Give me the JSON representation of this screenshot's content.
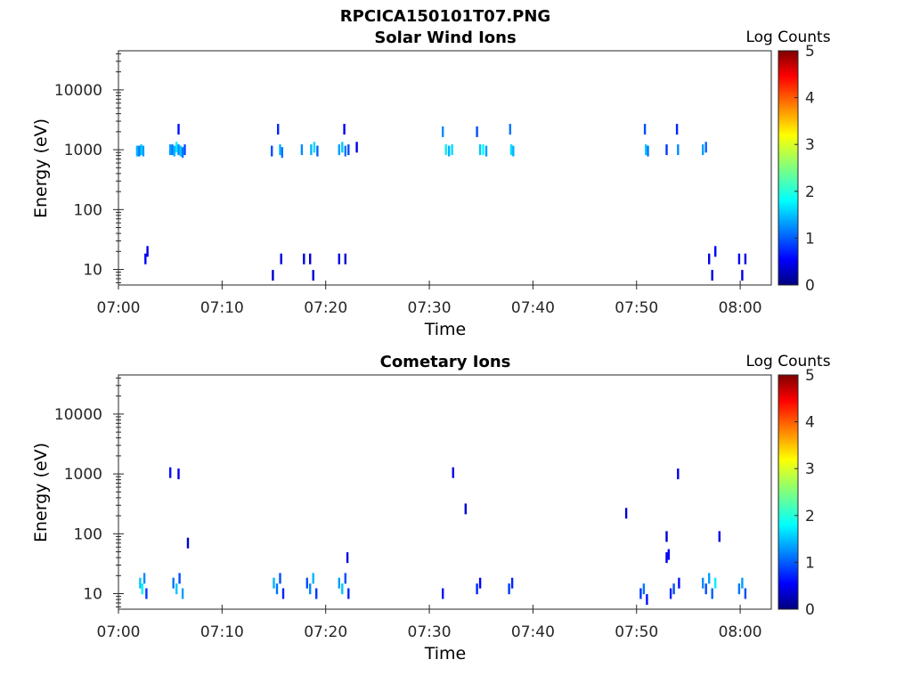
{
  "figure": {
    "title": "RPCICA150101T07.PNG"
  },
  "colors": {
    "axis": "#262626",
    "background": "#ffffff",
    "colormap": "jet"
  },
  "chart_data": [
    {
      "type": "heatmap",
      "title": "Solar Wind Ions",
      "xlabel": "Time",
      "ylabel": "Energy (eV)",
      "x_ticks": [
        "07:00",
        "07:10",
        "07:20",
        "07:30",
        "07:40",
        "07:50",
        "08:00"
      ],
      "x_range_minutes": [
        0,
        63
      ],
      "y_scale": "log",
      "y_range": [
        5.5,
        45000
      ],
      "y_ticks": [
        10,
        100,
        1000,
        10000
      ],
      "y_tick_labels": [
        "10",
        "100",
        "1000",
        "10000"
      ],
      "colorbar": {
        "label": "Log Counts",
        "range": [
          0,
          5
        ],
        "ticks": [
          "0",
          "1",
          "2",
          "3",
          "4",
          "5"
        ]
      },
      "cells": [
        [
          1.8,
          950,
          1.5
        ],
        [
          2.0,
          950,
          1.2
        ],
        [
          2.2,
          1000,
          1.6
        ],
        [
          2.4,
          950,
          1.4
        ],
        [
          2.6,
          15,
          0.6
        ],
        [
          2.8,
          20,
          0.5
        ],
        [
          5.0,
          1000,
          1.4
        ],
        [
          5.2,
          1000,
          1.2
        ],
        [
          5.4,
          950,
          1.5
        ],
        [
          5.6,
          1100,
          1.8
        ],
        [
          5.8,
          1000,
          1.3
        ],
        [
          6.0,
          950,
          1.6
        ],
        [
          6.2,
          900,
          1.2
        ],
        [
          6.4,
          1000,
          1.0
        ],
        [
          5.8,
          2200,
          0.7
        ],
        [
          14.8,
          950,
          1.0
        ],
        [
          15.4,
          2200,
          0.8
        ],
        [
          15.6,
          1000,
          1.5
        ],
        [
          15.8,
          900,
          1.2
        ],
        [
          14.9,
          8,
          0.4
        ],
        [
          15.7,
          15,
          0.5
        ],
        [
          17.7,
          1000,
          1.3
        ],
        [
          18.6,
          1000,
          1.5
        ],
        [
          18.9,
          1100,
          1.7
        ],
        [
          19.2,
          950,
          1.1
        ],
        [
          17.9,
          15,
          0.5
        ],
        [
          18.5,
          15,
          0.4
        ],
        [
          18.8,
          8,
          0.5
        ],
        [
          21.3,
          1000,
          1.4
        ],
        [
          21.6,
          1100,
          1.6
        ],
        [
          21.9,
          950,
          1.2
        ],
        [
          22.2,
          1000,
          1.0
        ],
        [
          21.8,
          2200,
          0.6
        ],
        [
          23.0,
          1100,
          0.5
        ],
        [
          21.3,
          15,
          0.5
        ],
        [
          21.9,
          15,
          0.4
        ],
        [
          31.3,
          2000,
          1.3
        ],
        [
          31.6,
          1000,
          1.8
        ],
        [
          31.9,
          950,
          1.5
        ],
        [
          32.2,
          1000,
          1.7
        ],
        [
          34.6,
          2000,
          1.0
        ],
        [
          34.9,
          1000,
          1.6
        ],
        [
          35.2,
          1000,
          1.9
        ],
        [
          35.5,
          950,
          1.4
        ],
        [
          37.8,
          2200,
          1.2
        ],
        [
          37.9,
          1000,
          1.7
        ],
        [
          38.1,
          950,
          1.5
        ],
        [
          50.8,
          2200,
          1.0
        ],
        [
          50.9,
          1000,
          1.6
        ],
        [
          51.1,
          950,
          1.2
        ],
        [
          52.9,
          1000,
          0.9
        ],
        [
          53.9,
          2200,
          0.8
        ],
        [
          54.0,
          1000,
          1.3
        ],
        [
          56.4,
          1000,
          1.4
        ],
        [
          56.7,
          1100,
          1.1
        ],
        [
          57.0,
          15,
          0.5
        ],
        [
          57.3,
          8,
          0.5
        ],
        [
          57.6,
          20,
          0.6
        ],
        [
          59.9,
          15,
          0.6
        ],
        [
          60.2,
          8,
          0.5
        ],
        [
          60.5,
          15,
          0.5
        ]
      ]
    },
    {
      "type": "heatmap",
      "title": "Cometary Ions",
      "xlabel": "Time",
      "ylabel": "Energy (eV)",
      "x_ticks": [
        "07:00",
        "07:10",
        "07:20",
        "07:30",
        "07:40",
        "07:50",
        "08:00"
      ],
      "x_range_minutes": [
        0,
        63
      ],
      "y_scale": "log",
      "y_range": [
        5.5,
        45000
      ],
      "y_ticks": [
        10,
        100,
        1000,
        10000
      ],
      "y_tick_labels": [
        "10",
        "100",
        "1000",
        "10000"
      ],
      "colorbar": {
        "label": "Log Counts",
        "range": [
          0,
          5
        ],
        "ticks": [
          "0",
          "1",
          "2",
          "3",
          "4",
          "5"
        ]
      },
      "cells": [
        [
          2.1,
          15,
          1.6
        ],
        [
          2.3,
          12,
          1.8
        ],
        [
          2.5,
          18,
          1.3
        ],
        [
          2.7,
          10,
          0.9
        ],
        [
          5.3,
          15,
          1.2
        ],
        [
          5.6,
          12,
          1.6
        ],
        [
          5.9,
          18,
          1.0
        ],
        [
          6.2,
          10,
          1.4
        ],
        [
          5.0,
          1050,
          0.7
        ],
        [
          5.8,
          1000,
          0.5
        ],
        [
          6.7,
          70,
          0.4
        ],
        [
          15.0,
          15,
          1.5
        ],
        [
          15.3,
          12,
          1.2
        ],
        [
          15.6,
          18,
          1.0
        ],
        [
          15.9,
          10,
          0.8
        ],
        [
          18.2,
          15,
          1.0
        ],
        [
          18.5,
          12,
          1.3
        ],
        [
          18.8,
          18,
          1.5
        ],
        [
          19.1,
          10,
          0.9
        ],
        [
          21.3,
          15,
          1.4
        ],
        [
          21.6,
          12,
          1.6
        ],
        [
          21.9,
          18,
          1.0
        ],
        [
          22.2,
          10,
          0.8
        ],
        [
          22.1,
          40,
          0.5
        ],
        [
          31.3,
          10,
          0.7
        ],
        [
          32.3,
          1050,
          0.5
        ],
        [
          33.5,
          260,
          0.4
        ],
        [
          34.6,
          12,
          0.8
        ],
        [
          34.9,
          15,
          0.6
        ],
        [
          37.7,
          12,
          0.9
        ],
        [
          38.0,
          15,
          0.8
        ],
        [
          49.0,
          220,
          0.4
        ],
        [
          50.4,
          10,
          0.9
        ],
        [
          50.7,
          12,
          1.2
        ],
        [
          51.0,
          8,
          0.7
        ],
        [
          52.9,
          90,
          0.4
        ],
        [
          52.9,
          40,
          0.5
        ],
        [
          53.1,
          45,
          0.6
        ],
        [
          53.3,
          10,
          0.8
        ],
        [
          53.6,
          12,
          1.0
        ],
        [
          54.0,
          1000,
          0.5
        ],
        [
          54.1,
          15,
          0.7
        ],
        [
          56.4,
          15,
          1.3
        ],
        [
          56.7,
          12,
          1.0
        ],
        [
          57.0,
          18,
          1.4
        ],
        [
          57.3,
          10,
          1.1
        ],
        [
          57.6,
          15,
          1.8
        ],
        [
          58.0,
          90,
          0.5
        ],
        [
          59.9,
          12,
          1.2
        ],
        [
          60.2,
          15,
          1.4
        ],
        [
          60.5,
          10,
          1.0
        ]
      ]
    }
  ]
}
